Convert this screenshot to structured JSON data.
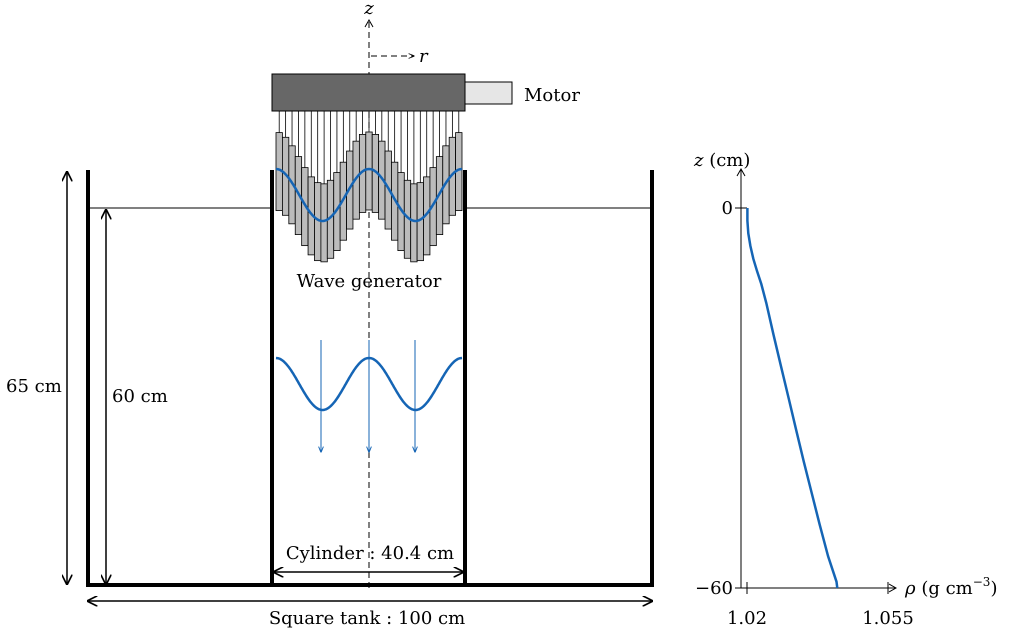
{
  "diagram": {
    "axis_z": "z",
    "axis_r": "r",
    "motor_label": "Motor",
    "wave_generator_label": "Wave generator",
    "label_65cm": "65 cm",
    "label_60cm": "60 cm",
    "cylinder_label": "Cylinder :  40.4 cm",
    "tank_label": "Square tank :  100 cm"
  },
  "colors": {
    "wave": "#1565b5",
    "motor_body": "#676767",
    "motor_shaft": "#e6e6e6",
    "plates": "#bcbcbc",
    "ink": "#000000"
  },
  "chart_data": {
    "type": "line",
    "ylabel": "z (cm)",
    "xlabel": "ρ (g cm⁻³)",
    "xlabel_main": "ρ",
    "xlabel_unit": "(g cm",
    "xlabel_exp": "−3",
    "xlabel_close": ")",
    "x_ticks": [
      1.02,
      1.055
    ],
    "x_tick_labels": [
      "1.02",
      "1.055"
    ],
    "y_ticks": [
      0,
      -60
    ],
    "y_tick_labels": [
      "0",
      "−60"
    ],
    "xlim": [
      1.02,
      1.055
    ],
    "ylim": [
      -60,
      0
    ],
    "series": [
      {
        "points": [
          [
            1.0201,
            0
          ],
          [
            1.0201,
            -2
          ],
          [
            1.0203,
            -4
          ],
          [
            1.0208,
            -6
          ],
          [
            1.0215,
            -8
          ],
          [
            1.0224,
            -10
          ],
          [
            1.0234,
            -12
          ],
          [
            1.0246,
            -15
          ],
          [
            1.0263,
            -20
          ],
          [
            1.0281,
            -25
          ],
          [
            1.0299,
            -30
          ],
          [
            1.0317,
            -35
          ],
          [
            1.0335,
            -40
          ],
          [
            1.0354,
            -45
          ],
          [
            1.0373,
            -50
          ],
          [
            1.0393,
            -55
          ],
          [
            1.0408,
            -58
          ],
          [
            1.0413,
            -59
          ],
          [
            1.0415,
            -60
          ]
        ]
      }
    ]
  }
}
